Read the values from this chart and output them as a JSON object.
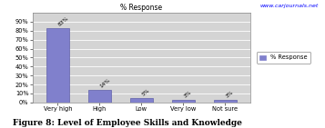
{
  "categories": [
    "Very high",
    "High",
    "Low",
    "Very low",
    "Not sure"
  ],
  "values": [
    83,
    14,
    5,
    3,
    3
  ],
  "bar_color": "#8080cc",
  "bar_edge_color": "#6060aa",
  "title": "% Response",
  "ylim": [
    0,
    100
  ],
  "legend_label": "% Response",
  "plot_bg_color": "#d4d4d4",
  "outer_bg_color": "#f0f0f0",
  "figure_caption": "Figure 8: Level of Employee Skills and Knowledge",
  "url_text": "www.carjournals.net",
  "title_fontsize": 5.5,
  "tick_fontsize": 4.8,
  "legend_fontsize": 4.8,
  "caption_fontsize": 6.5,
  "label_fontsize": 4.2,
  "url_fontsize": 4.5
}
